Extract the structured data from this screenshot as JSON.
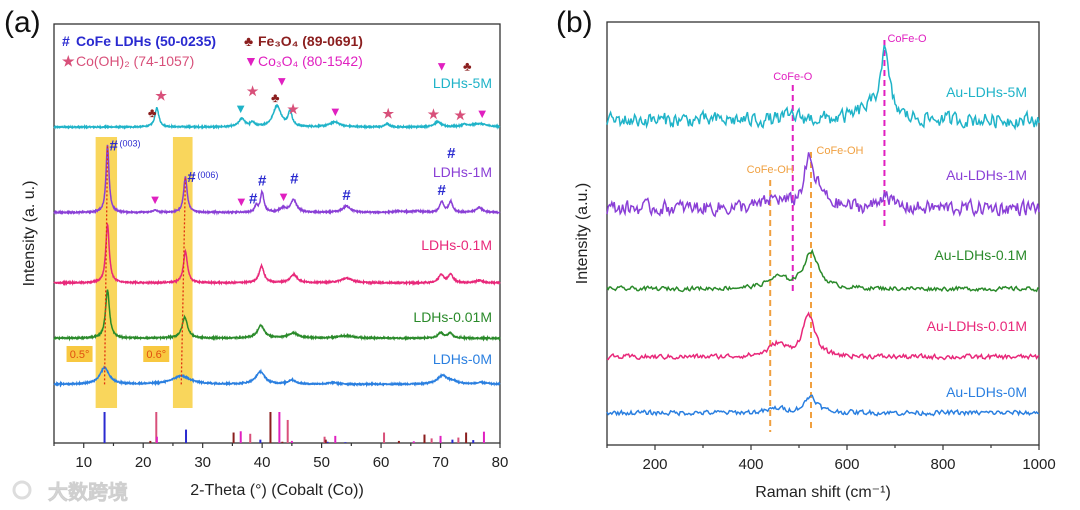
{
  "panel_labels": {
    "a": "(a)",
    "b": "(b)"
  },
  "watermark": "大数跨境",
  "chart_data": [
    {
      "type": "line",
      "panel": "(a)",
      "xlabel": "2-Theta (°) (Cobalt (Co))",
      "ylabel": "Intensity (a. u.)",
      "xlim": [
        5,
        80
      ],
      "ylim": [
        0,
        100
      ],
      "xticks": [
        10,
        20,
        30,
        40,
        50,
        60,
        70,
        80
      ],
      "legend": [
        {
          "symbol": "#",
          "text": "CoFe LDHs (50-0235)",
          "color": "#2a2ad0",
          "bold": true
        },
        {
          "symbol": "♣",
          "text": "Fe₃O₄ (89-0691)",
          "color": "#8b1e1e",
          "bold": true
        },
        {
          "symbol": "★",
          "text": "Co(OH)₂ (74-1057)",
          "color": "#d8507a",
          "bold": false
        },
        {
          "symbol": "▼",
          "text": "Co₃O₄ (80-1542)",
          "color": "#e020c0",
          "bold": false
        }
      ],
      "series": [
        {
          "name": "LDHs-5M",
          "color": "#1fb3c8",
          "offset": 75.4,
          "peaks": [
            [
              22.3,
              4.5,
              0.4
            ],
            [
              36.6,
              2,
              0.6
            ],
            [
              38.4,
              1,
              0.4
            ],
            [
              42.5,
              5,
              0.8
            ],
            [
              44.7,
              3.5,
              0.4
            ],
            [
              52.2,
              1.2,
              1
            ],
            [
              61,
              0.8,
              0.4
            ],
            [
              69.5,
              1.2,
              0.7
            ],
            [
              74,
              0.5,
              0.5
            ],
            [
              76.5,
              0.8,
              1.5
            ]
          ]
        },
        {
          "name": "LDHs-1M",
          "color": "#8a3fd6",
          "offset": 55,
          "peaks": [
            [
              14.0,
              16,
              0.3
            ],
            [
              22,
              0.5,
              0.5
            ],
            [
              27.1,
              8.5,
              0.35
            ],
            [
              39.0,
              1.5,
              0.3
            ],
            [
              40.0,
              4.8,
              0.35
            ],
            [
              43.5,
              1,
              0.6
            ],
            [
              45.3,
              3,
              0.6
            ],
            [
              54.2,
              1.5,
              0.8
            ],
            [
              63,
              0.3,
              1
            ],
            [
              66,
              0.3,
              1
            ],
            [
              70.2,
              2.5,
              0.4
            ],
            [
              71.7,
              2.6,
              0.4
            ],
            [
              76.5,
              1.2,
              0.6
            ]
          ]
        },
        {
          "name": "LDHs-0.1M",
          "color": "#e8287a",
          "offset": 38.2,
          "peaks": [
            [
              14.0,
              14,
              0.35
            ],
            [
              27.1,
              7.5,
              0.4
            ],
            [
              39.9,
              4,
              0.5
            ],
            [
              45.3,
              2,
              0.7
            ],
            [
              54.2,
              1.1,
              1.2
            ],
            [
              70.1,
              2,
              0.5
            ],
            [
              71.7,
              2,
              0.5
            ],
            [
              76.5,
              0.6,
              0.7
            ]
          ]
        },
        {
          "name": "LDHs-0.01M",
          "color": "#2a8a2a",
          "offset": 25,
          "peaks": [
            [
              14.0,
              11.5,
              0.4
            ],
            [
              27.0,
              5,
              0.55
            ],
            [
              39.8,
              3,
              0.7
            ],
            [
              45.2,
              1.2,
              1
            ],
            [
              54,
              0.6,
              1.5
            ],
            [
              70,
              1.3,
              0.5
            ],
            [
              71.6,
              1.2,
              0.5
            ]
          ]
        },
        {
          "name": "LDHs-0M",
          "color": "#2a7fe0",
          "offset": 14,
          "peaks": [
            [
              13.5,
              4,
              0.9
            ],
            [
              26.4,
              2,
              1.8
            ],
            [
              39.7,
              3,
              0.9
            ],
            [
              45,
              1,
              0.7
            ],
            [
              52,
              0.4,
              1
            ],
            [
              70.3,
              2,
              1
            ],
            [
              72,
              0.6,
              1
            ],
            [
              77,
              0.4,
              1
            ]
          ]
        }
      ],
      "markers": [
        {
          "series": 0,
          "symbol": "♣",
          "x": 21.5,
          "color": "#8b1e1e"
        },
        {
          "series": 0,
          "symbol": "★",
          "x": 23.0,
          "color": "#d8507a"
        },
        {
          "series": 0,
          "symbol": "▼",
          "x": 36.4,
          "color": "#1fb3c8"
        },
        {
          "series": 0,
          "symbol": "★",
          "x": 38.4,
          "color": "#d8507a"
        },
        {
          "series": 0,
          "symbol": "♣",
          "x": 42.2,
          "color": "#8b1e1e"
        },
        {
          "series": 0,
          "symbol": "▼",
          "x": 43.3,
          "color": "#e020c0"
        },
        {
          "series": 0,
          "symbol": "★",
          "x": 45.2,
          "color": "#d8507a"
        },
        {
          "series": 0,
          "symbol": "▼",
          "x": 52.3,
          "color": "#e020c0"
        },
        {
          "series": 0,
          "symbol": "★",
          "x": 61.2,
          "color": "#d8507a"
        },
        {
          "series": 0,
          "symbol": "★",
          "x": 68.8,
          "color": "#d8507a"
        },
        {
          "series": 0,
          "symbol": "▼",
          "x": 70.2,
          "color": "#e020c0"
        },
        {
          "series": 0,
          "symbol": "★",
          "x": 73.3,
          "color": "#d8507a"
        },
        {
          "series": 0,
          "symbol": "♣",
          "x": 74.5,
          "color": "#8b1e1e"
        },
        {
          "series": 0,
          "symbol": "▼",
          "x": 77.0,
          "color": "#e020c0"
        },
        {
          "series": 1,
          "symbol": "▼",
          "x": 22.0,
          "color": "#e020c0"
        },
        {
          "series": 1,
          "symbol": "▼",
          "x": 36.5,
          "color": "#e020c0"
        },
        {
          "series": 1,
          "symbol": "#",
          "x": 38.5,
          "color": "#2a2ad0"
        },
        {
          "series": 1,
          "symbol": "#",
          "x": 40.0,
          "color": "#2a2ad0"
        },
        {
          "series": 1,
          "symbol": "▼",
          "x": 43.6,
          "color": "#e020c0"
        },
        {
          "series": 1,
          "symbol": "#",
          "x": 45.4,
          "color": "#2a2ad0"
        },
        {
          "series": 1,
          "symbol": "#",
          "x": 54.2,
          "color": "#2a2ad0"
        },
        {
          "series": 1,
          "symbol": "#",
          "x": 70.2,
          "color": "#2a2ad0"
        },
        {
          "series": 1,
          "symbol": "#",
          "x": 71.8,
          "color": "#2a2ad0"
        }
      ],
      "peak_labels": [
        {
          "symbol": "#",
          "text": "(003)",
          "x": 14.0,
          "color": "#2a2ad0"
        },
        {
          "symbol": "#",
          "text": "(006)",
          "x": 27.1,
          "color": "#2a2ad0"
        }
      ],
      "highlight_bands": [
        [
          12.0,
          15.6
        ],
        [
          25.0,
          28.3
        ]
      ],
      "shift_annotations": [
        {
          "text": "0.5°",
          "from": 13.5,
          "to": 14.0
        },
        {
          "text": "0.6°",
          "from": 26.4,
          "to": 27.1
        }
      ],
      "reference_sticks": [
        {
          "phase": "CoFe LDHs",
          "color": "#2a2ad0",
          "lines": [
            [
              13.5,
              7.4
            ],
            [
              27.2,
              3.2
            ],
            [
              39.7,
              0.8
            ],
            [
              51,
              0.3
            ],
            [
              54,
              0.2
            ],
            [
              70,
              0.5
            ],
            [
              72,
              0.8
            ],
            [
              75.5,
              0.7
            ]
          ]
        },
        {
          "phase": "Co(OH)2",
          "color": "#d8507a",
          "lines": [
            [
              22.2,
              7.4
            ],
            [
              38,
              2.2
            ],
            [
              44.3,
              5.5
            ],
            [
              50.5,
              1.5
            ],
            [
              60.5,
              2.5
            ],
            [
              67.3,
              2
            ],
            [
              68.5,
              1.1
            ],
            [
              73,
              1.3
            ]
          ]
        },
        {
          "phase": "Fe3O4",
          "color": "#8b1e1e",
          "lines": [
            [
              21.2,
              0.5
            ],
            [
              35.2,
              2.5
            ],
            [
              41.4,
              7.4
            ],
            [
              43.4,
              0.3
            ],
            [
              50.7,
              0.8
            ],
            [
              63,
              0.5
            ],
            [
              67.3,
              2
            ],
            [
              74.3,
              2.5
            ]
          ]
        },
        {
          "phase": "Co3O4",
          "color": "#e020c0",
          "lines": [
            [
              22.3,
              1.5
            ],
            [
              36.4,
              2.8
            ],
            [
              42.9,
              7.4
            ],
            [
              45,
              0.5
            ],
            [
              52.3,
              1.7
            ],
            [
              65.5,
              0.4
            ],
            [
              70,
              1.7
            ],
            [
              77.3,
              2.7
            ]
          ]
        }
      ]
    },
    {
      "type": "line",
      "panel": "(b)",
      "xlabel": "Raman shift (cm⁻¹)",
      "ylabel": "Intensity (a.u.)",
      "xlim": [
        100,
        1000
      ],
      "ylim": [
        0,
        100
      ],
      "xticks": [
        200,
        400,
        600,
        800,
        1000
      ],
      "series": [
        {
          "name": "Au-LDHs-5M",
          "color": "#1fb3c8",
          "offset": 76.8,
          "noise": 2.4,
          "peaks": [
            [
              678,
              15.8,
              12
            ],
            [
              640,
              2,
              25
            ],
            [
              487,
              1,
              20
            ]
          ]
        },
        {
          "name": "Au-LDHs-1M",
          "color": "#8a3fd6",
          "offset": 56,
          "noise": 2.4,
          "peaks": [
            [
              520,
              10,
              12
            ],
            [
              540,
              3,
              20
            ],
            [
              680,
              4,
              10
            ],
            [
              450,
              2,
              20
            ]
          ]
        },
        {
          "name": "Au-LDHs-0.1M",
          "color": "#2a8a2a",
          "offset": 36.9,
          "noise": 0.7,
          "peaks": [
            [
              525,
              8.7,
              18
            ],
            [
              455,
              2.5,
              25
            ]
          ]
        },
        {
          "name": "Au-LDHs-0.01M",
          "color": "#e8287a",
          "offset": 20.8,
          "noise": 0.8,
          "peaks": [
            [
              520,
              10,
              15
            ],
            [
              455,
              3,
              20
            ]
          ]
        },
        {
          "name": "Au-LDHs-0M",
          "color": "#2a7fe0",
          "offset": 7.6,
          "noise": 0.8,
          "peaks": [
            [
              525,
              4,
              15
            ],
            [
              455,
              1,
              20
            ]
          ]
        }
      ],
      "annotations": [
        {
          "text": "CoFe-O",
          "x": 487,
          "color": "#e020c0"
        },
        {
          "text": "CoFe-O",
          "x": 678,
          "color": "#e020c0"
        },
        {
          "text": "CoFe-OH",
          "x": 440,
          "color": "#f0a040"
        },
        {
          "text": "CoFe-OH",
          "x": 525,
          "color": "#f0a040"
        }
      ]
    }
  ]
}
